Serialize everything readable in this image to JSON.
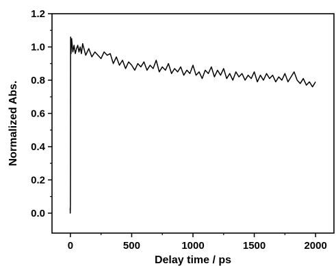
{
  "chart_data": {
    "type": "line",
    "title": "",
    "xlabel": "Delay time / ps",
    "ylabel": "Normalized Abs.",
    "xlim": [
      -150,
      2150
    ],
    "ylim": [
      -0.12,
      1.2
    ],
    "xticks": [
      0,
      500,
      1000,
      1500,
      2000
    ],
    "xtick_labels": [
      "0",
      "500",
      "1000",
      "1500",
      "2000"
    ],
    "yticks": [
      0.0,
      0.2,
      0.4,
      0.6,
      0.8,
      1.0,
      1.2
    ],
    "ytick_labels": [
      "0.0",
      "0.2",
      "0.4",
      "0.6",
      "0.8",
      "1.0",
      "1.2"
    ],
    "grid": false,
    "line_color": "#000000",
    "series": [
      {
        "x": [
          -2,
          -1,
          0,
          0.5,
          1,
          1.5,
          2,
          3,
          4,
          5,
          10,
          20,
          30,
          40,
          50,
          60,
          70,
          80,
          90,
          100,
          125,
          150,
          175,
          200,
          225,
          250,
          275,
          300,
          325,
          350,
          375,
          400,
          425,
          450,
          475,
          500,
          525,
          550,
          575,
          600,
          625,
          650,
          675,
          700,
          725,
          750,
          775,
          800,
          825,
          850,
          875,
          900,
          925,
          950,
          975,
          1000,
          1025,
          1050,
          1075,
          1100,
          1125,
          1150,
          1175,
          1200,
          1225,
          1250,
          1275,
          1300,
          1325,
          1350,
          1375,
          1400,
          1425,
          1450,
          1475,
          1500,
          1525,
          1550,
          1575,
          1600,
          1625,
          1650,
          1675,
          1700,
          1725,
          1750,
          1775,
          1800,
          1825,
          1850,
          1875,
          1900,
          1925,
          1950,
          1975,
          2000
        ],
        "y": [
          0.03,
          0.0,
          0.05,
          0.25,
          0.65,
          0.98,
          1.06,
          0.97,
          1.03,
          0.96,
          1.05,
          0.97,
          1.01,
          0.96,
          0.99,
          1.01,
          0.97,
          1.0,
          0.96,
          1.02,
          0.95,
          0.99,
          0.94,
          0.97,
          0.95,
          0.93,
          0.97,
          0.95,
          0.96,
          0.9,
          0.94,
          0.89,
          0.92,
          0.87,
          0.91,
          0.89,
          0.86,
          0.9,
          0.88,
          0.91,
          0.86,
          0.89,
          0.87,
          0.92,
          0.85,
          0.88,
          0.86,
          0.9,
          0.84,
          0.87,
          0.85,
          0.88,
          0.83,
          0.86,
          0.84,
          0.89,
          0.83,
          0.85,
          0.81,
          0.86,
          0.84,
          0.88,
          0.82,
          0.86,
          0.83,
          0.87,
          0.81,
          0.84,
          0.8,
          0.85,
          0.82,
          0.84,
          0.8,
          0.83,
          0.81,
          0.85,
          0.79,
          0.83,
          0.8,
          0.84,
          0.81,
          0.83,
          0.79,
          0.82,
          0.8,
          0.84,
          0.79,
          0.82,
          0.85,
          0.8,
          0.78,
          0.81,
          0.77,
          0.79,
          0.76,
          0.79
        ]
      }
    ]
  }
}
